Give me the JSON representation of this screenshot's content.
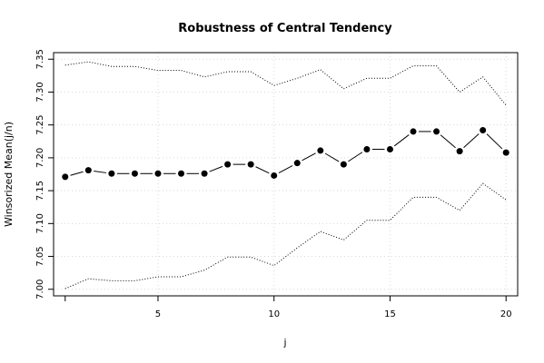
{
  "chart_data": {
    "type": "line",
    "title": "Robustness of Central Tendency",
    "xlabel": "j",
    "ylabel": "Winsorized Mean(j/n)",
    "x": [
      1,
      2,
      3,
      4,
      5,
      6,
      7,
      8,
      9,
      10,
      11,
      12,
      13,
      14,
      15,
      16,
      17,
      18,
      19,
      20
    ],
    "xlim": [
      0.5,
      20.5
    ],
    "ylim": [
      6.99,
      7.36
    ],
    "xticks": [
      5,
      10,
      15,
      20
    ],
    "yticks": [
      7.0,
      7.05,
      7.1,
      7.15,
      7.2,
      7.25,
      7.3,
      7.35
    ],
    "ytick_labels": [
      "7.00",
      "7.05",
      "7.10",
      "7.15",
      "7.20",
      "7.25",
      "7.30",
      "7.35"
    ],
    "grid": true,
    "series": [
      {
        "style": "line-with-points",
        "values": [
          7.171,
          7.181,
          7.176,
          7.176,
          7.176,
          7.176,
          7.176,
          7.19,
          7.19,
          7.173,
          7.192,
          7.211,
          7.19,
          7.213,
          7.213,
          7.24,
          7.24,
          7.21,
          7.242,
          7.208
        ]
      },
      {
        "style": "dotted",
        "values": [
          7.341,
          7.346,
          7.339,
          7.339,
          7.333,
          7.333,
          7.323,
          7.331,
          7.331,
          7.31,
          7.321,
          7.334,
          7.305,
          7.321,
          7.321,
          7.34,
          7.34,
          7.3,
          7.323,
          7.28
        ]
      },
      {
        "style": "dotted",
        "values": [
          7.001,
          7.016,
          7.013,
          7.013,
          7.019,
          7.019,
          7.029,
          7.049,
          7.049,
          7.036,
          7.063,
          7.088,
          7.075,
          7.105,
          7.105,
          7.14,
          7.14,
          7.12,
          7.161,
          7.136
        ]
      }
    ]
  }
}
